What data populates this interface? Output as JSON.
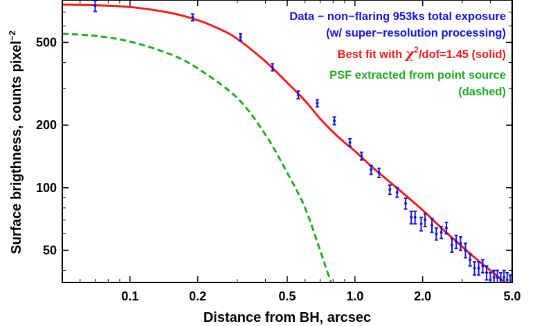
{
  "chart_data": {
    "type": "scatter",
    "xscale": "log",
    "yscale": "log",
    "xlim": [
      0.05,
      5.0
    ],
    "ylim": [
      35,
      800
    ],
    "xlabel": "Distance from BH, arcsec",
    "ylabel": "Surface brigthness, counts pixel",
    "ylabel_superscript": "−2",
    "xticks": [
      0.1,
      0.2,
      0.5,
      1.0,
      2.0,
      5.0
    ],
    "xtick_labels": [
      "0.1",
      "0.2",
      "0.5",
      "1.0",
      "2.0",
      "5.0"
    ],
    "yticks": [
      50,
      100,
      200,
      500
    ],
    "ytick_labels": [
      "50",
      "100",
      "200",
      "500"
    ],
    "legend": {
      "placement": "top-right",
      "data_line1": "Data − non−flaring 953ks total exposure",
      "data_line2": "(w/ super−resolution processing)",
      "fit_prefix": "Best fit with ",
      "fit_chi": "χ",
      "fit_sup": "2",
      "fit_suffix": "/dof=1.45 (solid)",
      "psf_line1": "PSF extracted from point source",
      "psf_line2": "(dashed)"
    },
    "colors": {
      "data": "#1414dc",
      "fit": "#ee1c1c",
      "psf": "#22aa22",
      "axes": "#000000"
    },
    "series": [
      {
        "kind": "points_with_errorbars",
        "x": [
          0.07,
          0.19,
          0.31,
          0.43,
          0.56,
          0.68,
          0.81,
          0.95,
          1.07,
          1.18,
          1.28,
          1.43,
          1.54,
          1.68,
          1.78,
          1.85,
          1.97,
          2.05,
          2.2,
          2.3,
          2.42,
          2.55,
          2.7,
          2.82,
          2.95,
          3.1,
          3.25,
          3.4,
          3.55,
          3.7,
          3.85,
          4.0,
          4.15,
          4.3,
          4.45,
          4.6,
          4.75,
          4.9
        ],
        "y": [
          750,
          660,
          530,
          380,
          280,
          255,
          210,
          165,
          142,
          122,
          118,
          98,
          95,
          84,
          72,
          72,
          67,
          70,
          66,
          60,
          61,
          64,
          53,
          55,
          54,
          50,
          45,
          41,
          41,
          42,
          39,
          36,
          37,
          37,
          36,
          37,
          36,
          35
        ],
        "err": [
          45,
          25,
          20,
          15,
          12,
          10,
          9,
          7,
          6,
          6,
          6,
          5,
          5,
          5,
          5,
          5,
          5,
          5,
          5,
          4,
          4,
          4,
          4,
          4,
          4,
          4,
          3,
          3,
          3,
          3,
          3,
          3,
          3,
          3,
          3,
          3,
          3,
          3
        ]
      },
      {
        "kind": "line_solid",
        "x": [
          0.05,
          0.07,
          0.1,
          0.15,
          0.2,
          0.25,
          0.3,
          0.4,
          0.5,
          0.6,
          0.7,
          0.8,
          0.9,
          1.0,
          1.2,
          1.5,
          2.0,
          2.5,
          3.0,
          3.5,
          4.0,
          4.5,
          5.0
        ],
        "y": [
          760,
          755,
          740,
          695,
          640,
          580,
          520,
          405,
          320,
          262,
          215,
          185,
          165,
          150,
          125,
          102,
          78,
          62,
          52,
          45,
          40,
          36,
          33
        ]
      },
      {
        "kind": "line_dashed",
        "x": [
          0.05,
          0.07,
          0.1,
          0.15,
          0.2,
          0.3,
          0.4,
          0.5,
          0.6,
          0.7,
          0.75,
          0.8
        ],
        "y": [
          550,
          538,
          505,
          440,
          375,
          270,
          180,
          118,
          80,
          50,
          40,
          33
        ]
      }
    ]
  }
}
